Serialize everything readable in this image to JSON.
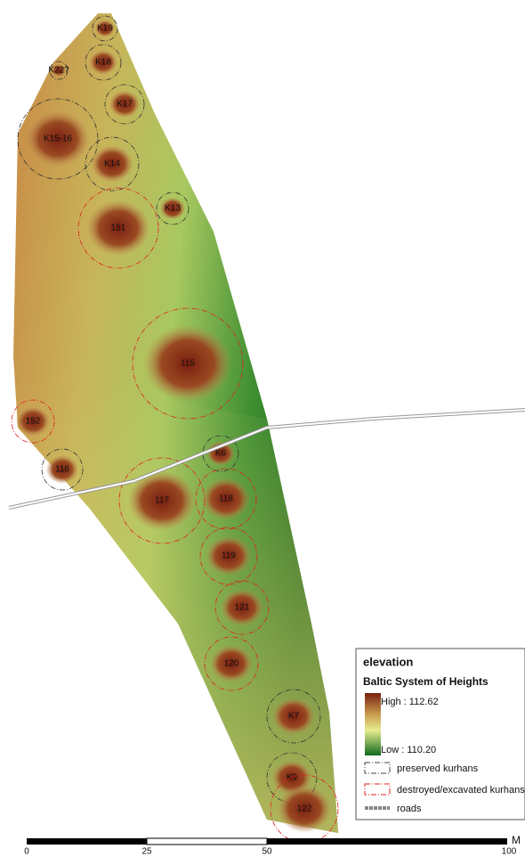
{
  "features": [
    {
      "label": "K19"
    },
    {
      "label": "K18"
    },
    {
      "label": "K22?"
    },
    {
      "label": "K17"
    },
    {
      "label": "K15-16"
    },
    {
      "label": "K14"
    },
    {
      "label": "K13"
    },
    {
      "label": "151"
    },
    {
      "label": "115"
    },
    {
      "label": "152"
    },
    {
      "label": "116"
    },
    {
      "label": "K6"
    },
    {
      "label": "117"
    },
    {
      "label": "118"
    },
    {
      "label": "119"
    },
    {
      "label": "121"
    },
    {
      "label": "120"
    },
    {
      "label": "K7"
    },
    {
      "label": "K9"
    },
    {
      "label": "122"
    }
  ],
  "legend": {
    "title": "elevation",
    "subtitle": "Baltic System of Heights",
    "high": "High : 112.62",
    "low": "Low : 110.20",
    "items": [
      "preserved kurhans",
      "destroyed/excavated kurhans",
      "roads"
    ]
  },
  "scale": {
    "labels": [
      "0",
      "25",
      "50",
      "100"
    ],
    "unit": "M"
  }
}
